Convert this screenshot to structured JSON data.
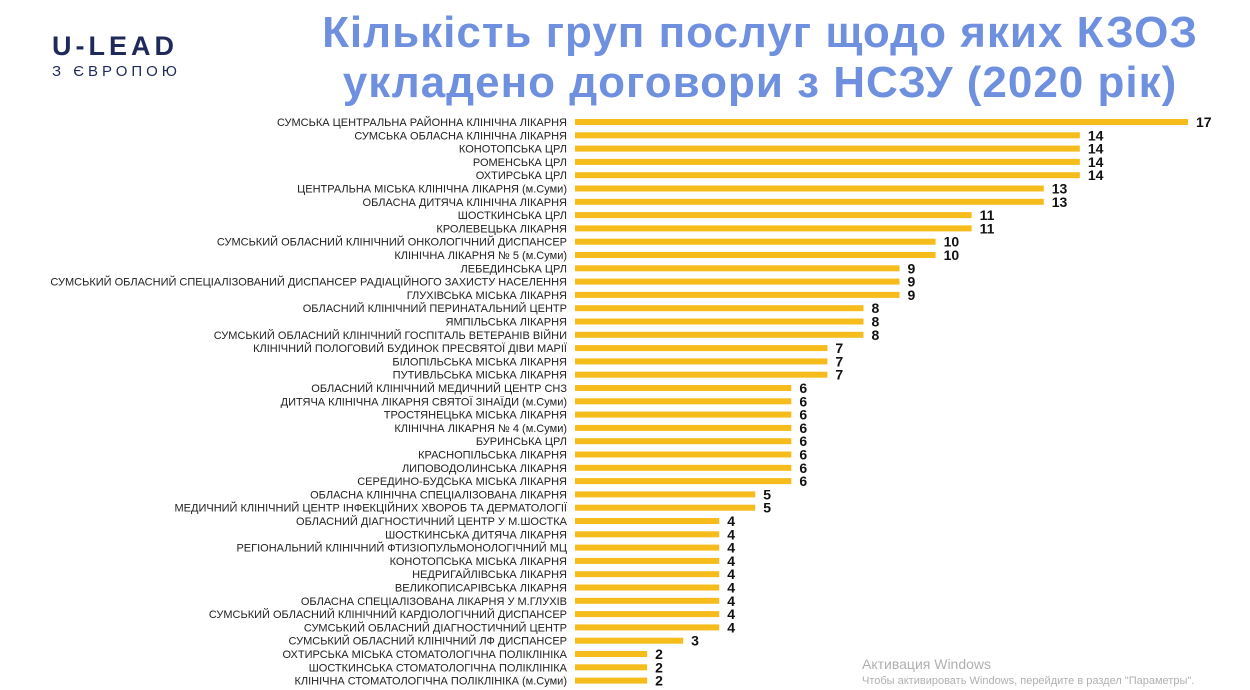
{
  "logo": {
    "main": "U-LEAD",
    "sub": "З ЄВРОПОЮ"
  },
  "title_line1": "Кількість груп послуг щодо яких КЗОЗ",
  "title_line2": "укладено договори з НСЗУ (2020 рік)",
  "colors": {
    "bar": "#f5bc1b",
    "title": "#6f8fdf",
    "logo": "#1f2a5a"
  },
  "chart_data": {
    "type": "bar",
    "orientation": "horizontal",
    "title": "Кількість груп послуг щодо яких КЗОЗ укладено договори з НСЗУ (2020 рік)",
    "xlabel": "",
    "ylabel": "",
    "grid": false,
    "categories": [
      "СУМСЬКА ЦЕНТРАЛЬНА РАЙОННА КЛІНІЧНА ЛІКАРНЯ",
      "СУМСЬКА ОБЛАСНА КЛІНІЧНА ЛІКАРНЯ",
      "КОНОТОПСЬКА ЦРЛ",
      "РОМЕНСЬКА ЦРЛ",
      "ОХТИРСЬКА ЦРЛ",
      "ЦЕНТРАЛЬНА МІСЬКА КЛІНІЧНА ЛІКАРНЯ (м.Суми)",
      "ОБЛАСНА ДИТЯЧА КЛІНІЧНА ЛІКАРНЯ",
      "ШОСТКИНСЬКА ЦРЛ",
      "КРОЛЕВЕЦЬКА ЛІКАРНЯ",
      "СУМСЬКИЙ ОБЛАСНИЙ КЛІНІЧНИЙ ОНКОЛОГІЧНИЙ ДИСПАНСЕР",
      "КЛІНІЧНА ЛІКАРНЯ № 5 (м.Суми)",
      "ЛЕБЕДИНСЬКА ЦРЛ",
      "СУМСЬКИЙ ОБЛАСНИЙ СПЕЦІАЛІЗОВАНИЙ ДИСПАНСЕР РАДІАЦІЙНОГО ЗАХИСТУ НАСЕЛЕННЯ",
      "ГЛУХІВСЬКА МІСЬКА ЛІКАРНЯ",
      "ОБЛАСНИЙ КЛІНІЧНИЙ ПЕРИНАТАЛЬНИЙ ЦЕНТР",
      "ЯМПІЛЬСЬКА ЛІКАРНЯ",
      "СУМСЬКИЙ ОБЛАСНИЙ КЛІНІЧНИЙ ГОСПІТАЛЬ ВЕТЕРАНІВ ВІЙНИ",
      "КЛІНІЧНИЙ ПОЛОГОВИЙ БУДИНОК ПРЕСВЯТОЇ ДІВИ МАРІЇ",
      "БІЛОПІЛЬСЬКА МІСЬКА ЛІКАРНЯ",
      "ПУТИВЛЬСЬКА МІСЬКА ЛІКАРНЯ",
      "ОБЛАСНИЙ КЛІНІЧНИЙ МЕДИЧНИЙ ЦЕНТР СНЗ",
      "ДИТЯЧА КЛІНІЧНА ЛІКАРНЯ СВЯТОЇ ЗІНАЇДИ (м.Суми)",
      "ТРОСТЯНЕЦЬКА МІСЬКА ЛІКАРНЯ",
      "КЛІНІЧНА ЛІКАРНЯ № 4 (м.Суми)",
      "БУРИНСЬКА ЦРЛ",
      "КРАСНОПІЛЬСЬКА ЛІКАРНЯ",
      "ЛИПОВОДОЛИНСЬКА ЛІКАРНЯ",
      "СЕРЕДИНО-БУДСЬКА МІСЬКА ЛІКАРНЯ",
      "ОБЛАСНА КЛІНІЧНА СПЕЦІАЛІЗОВАНА ЛІКАРНЯ",
      "МЕДИЧНИЙ КЛІНІЧНИЙ ЦЕНТР ІНФЕКЦІЙНИХ ХВОРОБ ТА ДЕРМАТОЛОГІЇ",
      "ОБЛАСНИЙ ДІАГНОСТИЧНИЙ ЦЕНТР У М.ШОСТКА",
      "ШОСТКИНСЬКА ДИТЯЧА ЛІКАРНЯ",
      "РЕГІОНАЛЬНИЙ КЛІНІЧНИЙ ФТИЗІОПУЛЬМОНОЛОГІЧНИЙ МЦ",
      "КОНОТОПСЬКА МІСЬКА ЛІКАРНЯ",
      "НЕДРИГАЙЛІВСЬКА ЛІКАРНЯ",
      "ВЕЛИКОПИСАРІВСЬКА ЛІКАРНЯ",
      "ОБЛАСНА СПЕЦІАЛІЗОВАНА ЛІКАРНЯ У М.ГЛУХІВ",
      "СУМСЬКИЙ ОБЛАСНИЙ КЛІНІЧНИЙ КАРДІОЛОГІЧНИЙ ДИСПАНСЕР",
      "СУМСЬКИЙ ОБЛАСНИЙ ДІАГНОСТИЧНИЙ ЦЕНТР",
      "СУМСЬКИЙ ОБЛАСНИЙ КЛІНІЧНИЙ ЛФ ДИСПАНСЕР",
      "ОХТИРСЬКА МІСЬКА СТОМАТОЛОГІЧНА ПОЛІКЛІНІКА",
      "ШОСТКИНСЬКА СТОМАТОЛОГІЧНА ПОЛІКЛІНІКА",
      "КЛІНІЧНА СТОМАТОЛОГІЧНА ПОЛІКЛІНІКА (м.Суми)"
    ],
    "values": [
      17,
      14,
      14,
      14,
      14,
      13,
      13,
      11,
      11,
      10,
      10,
      9,
      9,
      9,
      8,
      8,
      8,
      7,
      7,
      7,
      6,
      6,
      6,
      6,
      6,
      6,
      6,
      6,
      5,
      5,
      4,
      4,
      4,
      4,
      4,
      4,
      4,
      4,
      4,
      3,
      2,
      2,
      2
    ],
    "xlim": [
      0,
      17
    ]
  },
  "watermark": {
    "title": "Активация Windows",
    "text": "Чтобы активировать Windows, перейдите в раздел \"Параметры\"."
  }
}
